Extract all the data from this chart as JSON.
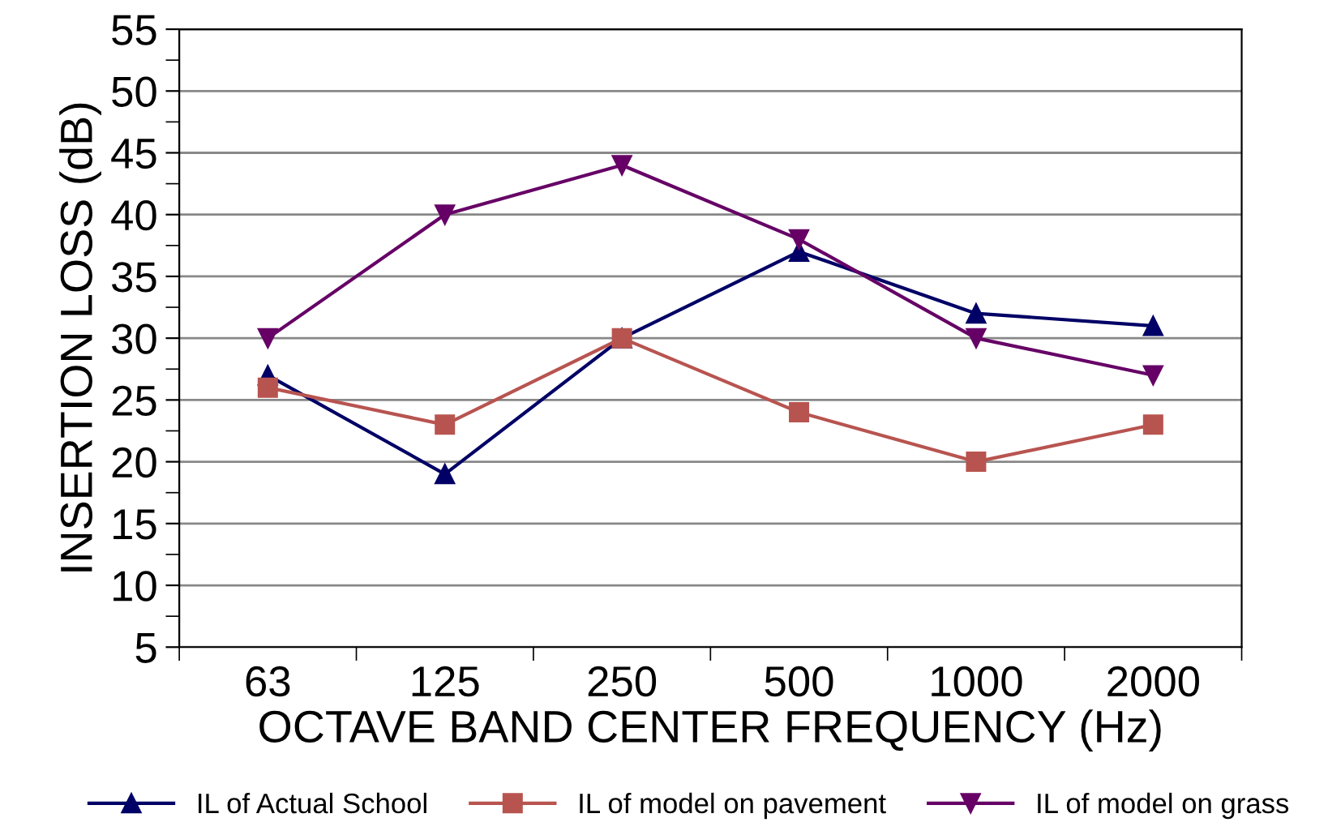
{
  "chart_data": {
    "type": "line",
    "xlabel": "OCTAVE BAND CENTER FREQUENCY (Hz)",
    "ylabel": "INSERTION LOSS (dB)",
    "categories": [
      "63",
      "125",
      "250",
      "500",
      "1000",
      "2000"
    ],
    "series": [
      {
        "name": "IL of Actual School",
        "color": "#000066",
        "marker": "triangle",
        "values": [
          27,
          19,
          30,
          37,
          32,
          31
        ]
      },
      {
        "name": "IL of model on pavement",
        "color": "#b85450",
        "marker": "square",
        "values": [
          26,
          23,
          30,
          24,
          20,
          23
        ]
      },
      {
        "name": "IL of model on grass",
        "color": "#660066",
        "marker": "triangle_down",
        "values": [
          30,
          40,
          44,
          38,
          30,
          27
        ]
      }
    ],
    "ylim": [
      5,
      55
    ],
    "yticks": [
      5,
      10,
      15,
      20,
      25,
      30,
      35,
      40,
      45,
      50,
      55
    ],
    "grid": "y",
    "legend": "bottom",
    "line_style": "solid"
  }
}
